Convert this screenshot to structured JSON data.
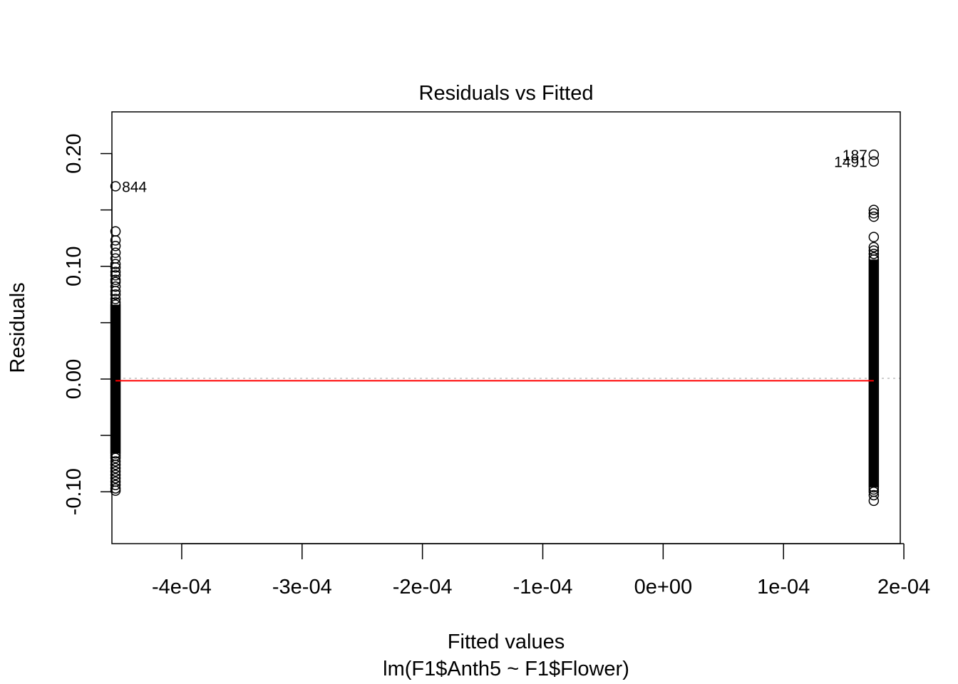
{
  "chart_data": {
    "type": "scatter",
    "title": "Residuals vs Fitted",
    "xlabel": "Fitted values",
    "subtitle": "lm(F1$Anth5 ~ F1$Flower)",
    "ylabel": "Residuals",
    "xlim": [
      -0.000458,
      0.000197
    ],
    "ylim": [
      -0.146,
      0.237
    ],
    "x_ticks": [
      -0.0004,
      -0.0003,
      -0.0002,
      -0.0001,
      0.0,
      0.0001,
      0.0002
    ],
    "x_tick_labels": [
      "-4e-04",
      "-3e-04",
      "-2e-04",
      "-1e-04",
      "0e+00",
      "1e-04",
      "2e-04"
    ],
    "y_ticks": [
      -0.1,
      -0.05,
      0.0,
      0.05,
      0.1,
      0.15,
      0.2
    ],
    "y_tick_labels": [
      "-0.10",
      "",
      "0.00",
      "",
      "0.10",
      "",
      "0.20"
    ],
    "groups": [
      {
        "x": -0.000455,
        "dense_range": [
          -0.066,
          0.066
        ],
        "points": [
          -0.099,
          -0.097,
          -0.094,
          -0.091,
          -0.088,
          -0.085,
          -0.082,
          -0.079,
          -0.076,
          -0.073,
          -0.07,
          -0.068,
          0.068,
          0.071,
          0.075,
          0.078,
          0.082,
          0.086,
          0.088,
          0.092,
          0.095,
          0.099,
          0.102,
          0.107,
          0.112,
          0.118,
          0.123,
          0.131,
          0.171
        ]
      },
      {
        "x": 0.000175,
        "dense_range": [
          -0.096,
          0.106
        ],
        "points": [
          -0.108,
          -0.103,
          -0.1,
          -0.098,
          0.108,
          0.111,
          0.114,
          0.117,
          0.126,
          0.144,
          0.147,
          0.15,
          0.193,
          0.199
        ]
      }
    ],
    "labelled_points": [
      {
        "label": "844",
        "x": -0.000455,
        "y": 0.171,
        "side": "right"
      },
      {
        "label": "187",
        "x": 0.000175,
        "y": 0.199,
        "side": "left"
      },
      {
        "label": "1491",
        "x": 0.000175,
        "y": 0.193,
        "side": "left"
      }
    ],
    "smooth_line": {
      "color": "#ff0000",
      "x": [
        -0.000455,
        0.000175
      ],
      "y": [
        -0.0015,
        -0.0015
      ]
    },
    "reference_line": {
      "y": 0,
      "color": "#bebebe",
      "style": "dotted"
    }
  }
}
